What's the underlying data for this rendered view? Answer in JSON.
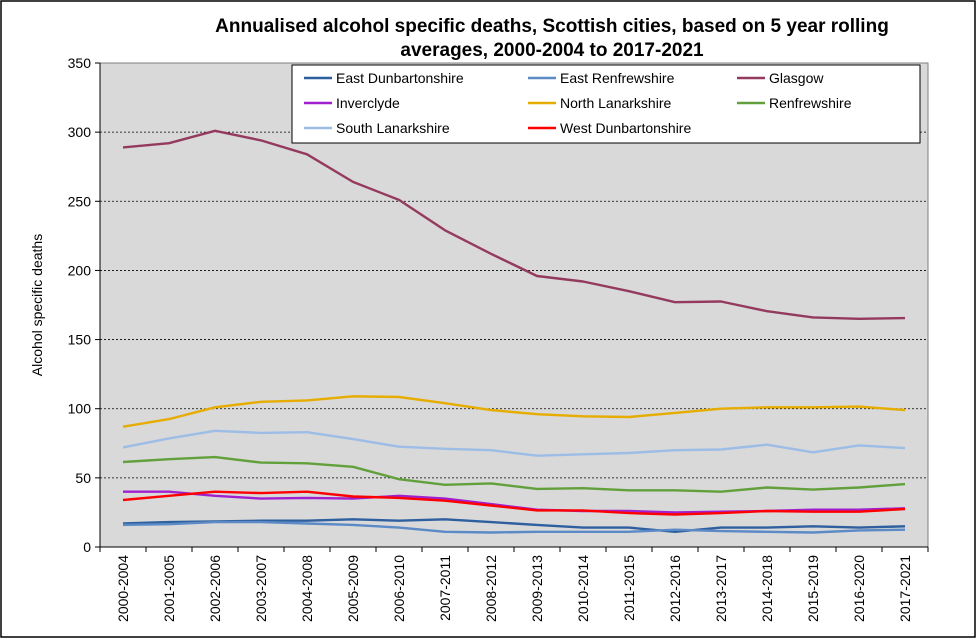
{
  "chart_data": {
    "type": "line",
    "title_lines": [
      "Annualised alcohol specific deaths, Scottish cities, based on 5 year rolling",
      "averages, 2000-2004 to 2017-2021"
    ],
    "ylabel": "Alcohol specific deaths",
    "xlabel": "",
    "ylim": [
      0,
      350
    ],
    "yticks": [
      0,
      50,
      100,
      150,
      200,
      250,
      300,
      350
    ],
    "grid": "horizontal",
    "legend_position": "top",
    "plot_background": "#d9d9d9",
    "categories": [
      "2000-2004",
      "2001-2005",
      "2002-2006",
      "2003-2007",
      "2004-2008",
      "2005-2009",
      "2006-2010",
      "2007-2011",
      "2008-2012",
      "2009-2013",
      "2010-2014",
      "2011-2015",
      "2012-2016",
      "2013-2017",
      "2014-2018",
      "2015-2019",
      "2016-2020",
      "2017-2021"
    ],
    "series": [
      {
        "name": "East Dunbartonshire",
        "color": "#2e5f9e",
        "values": [
          17,
          18,
          18.5,
          19,
          19,
          20,
          19,
          20,
          18,
          16,
          14,
          14,
          11,
          14,
          14,
          15,
          14,
          15
        ]
      },
      {
        "name": "East Renfrewshire",
        "color": "#5b8ac6",
        "values": [
          16,
          16.5,
          18,
          18,
          17,
          16,
          14,
          11,
          10.5,
          11,
          11,
          11,
          12.5,
          11.5,
          11,
          10.5,
          12,
          12.5
        ]
      },
      {
        "name": "Glasgow",
        "color": "#953a5f",
        "values": [
          289,
          292,
          301,
          294,
          284,
          264,
          251,
          229,
          212,
          196,
          192,
          185,
          177,
          177.5,
          170.5,
          166,
          165,
          165.5
        ]
      },
      {
        "name": "Inverclyde",
        "color": "#a020d0",
        "values": [
          40,
          40,
          37,
          35,
          35.5,
          35,
          37,
          35,
          31,
          27,
          26,
          26,
          25,
          25.5,
          26,
          27,
          27,
          28
        ]
      },
      {
        "name": "North Lanarkshire",
        "color": "#e6ac00",
        "values": [
          87,
          92.5,
          101,
          105,
          106,
          109,
          108.5,
          104,
          99,
          96,
          94.5,
          94,
          97,
          100,
          101,
          101,
          101.5,
          99
        ]
      },
      {
        "name": "Renfrewshire",
        "color": "#62a03c",
        "values": [
          61.5,
          63.5,
          65,
          61,
          60.5,
          58,
          49,
          45,
          46,
          42,
          42.5,
          41,
          41,
          40,
          43,
          41.5,
          43,
          45.5
        ]
      },
      {
        "name": "South Lanarkshire",
        "color": "#9dbde6",
        "values": [
          72,
          78.5,
          84,
          82.5,
          83,
          78,
          72.5,
          71,
          70,
          66,
          67,
          68,
          70,
          70.5,
          74,
          68.5,
          73.5,
          71.5
        ]
      },
      {
        "name": "West Dunbartonshire",
        "color": "#ff0000",
        "values": [
          34,
          37,
          40,
          39,
          40,
          36.5,
          35.5,
          33.5,
          30,
          26.5,
          26.5,
          24.5,
          23.5,
          24.5,
          26,
          25.5,
          25.5,
          27.5
        ]
      }
    ]
  }
}
